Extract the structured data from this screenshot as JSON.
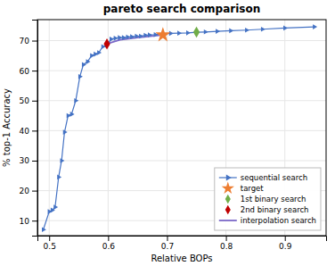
{
  "chart_data": {
    "type": "line",
    "title": "pareto search comparison",
    "x_label": "Relative BOPs",
    "y_label": "% top-1 Accuracy",
    "xlim": [
      0.48,
      0.97
    ],
    "ylim": [
      5,
      77
    ],
    "xticks": [
      0.5,
      0.6,
      0.7,
      0.8,
      0.9
    ],
    "yticks": [
      10,
      20,
      30,
      40,
      50,
      60,
      70
    ],
    "grid": true,
    "legend": "lower right",
    "series": [
      {
        "name": "sequential search",
        "type": "line",
        "marker": "triangle-right",
        "color": "#4472c4",
        "x": [
          0.49,
          0.5,
          0.505,
          0.51,
          0.516,
          0.521,
          0.526,
          0.532,
          0.538,
          0.545,
          0.552,
          0.558,
          0.565,
          0.572,
          0.578,
          0.584,
          0.591,
          0.598,
          0.605,
          0.612,
          0.619,
          0.626,
          0.633,
          0.64,
          0.648,
          0.655,
          0.663,
          0.67,
          0.68,
          0.693,
          0.706,
          0.72,
          0.735,
          0.75,
          0.765,
          0.785,
          0.808,
          0.835,
          0.862,
          0.9,
          0.95
        ],
        "values": [
          7.0,
          13.0,
          13.5,
          14.5,
          24.5,
          30.0,
          39.5,
          45.0,
          45.5,
          50.0,
          58.0,
          62.0,
          63.0,
          65.0,
          65.5,
          66.0,
          68.0,
          68.5,
          70.5,
          70.8,
          71.0,
          71.0,
          71.2,
          71.3,
          71.5,
          71.5,
          71.8,
          71.9,
          72.0,
          72.2,
          72.4,
          72.5,
          72.6,
          72.8,
          72.9,
          73.1,
          73.3,
          73.5,
          73.8,
          74.2,
          74.6
        ]
      },
      {
        "name": "target",
        "type": "scatter",
        "marker": "star",
        "color": "#ed7d31",
        "x": [
          0.693
        ],
        "values": [
          71.9
        ]
      },
      {
        "name": "1st binary search",
        "type": "scatter",
        "marker": "diamond",
        "color": "#70ad47",
        "x": [
          0.75
        ],
        "values": [
          72.8
        ]
      },
      {
        "name": "2nd binary search",
        "type": "scatter",
        "marker": "diamond",
        "color": "#c00000",
        "x": [
          0.598
        ],
        "values": [
          68.9
        ]
      },
      {
        "name": "interpolation search",
        "type": "line",
        "marker": "none",
        "color": "#7b68c8",
        "x": [
          0.598,
          0.62,
          0.65,
          0.693
        ],
        "values": [
          68.9,
          70.3,
          71.0,
          71.9
        ]
      }
    ]
  }
}
